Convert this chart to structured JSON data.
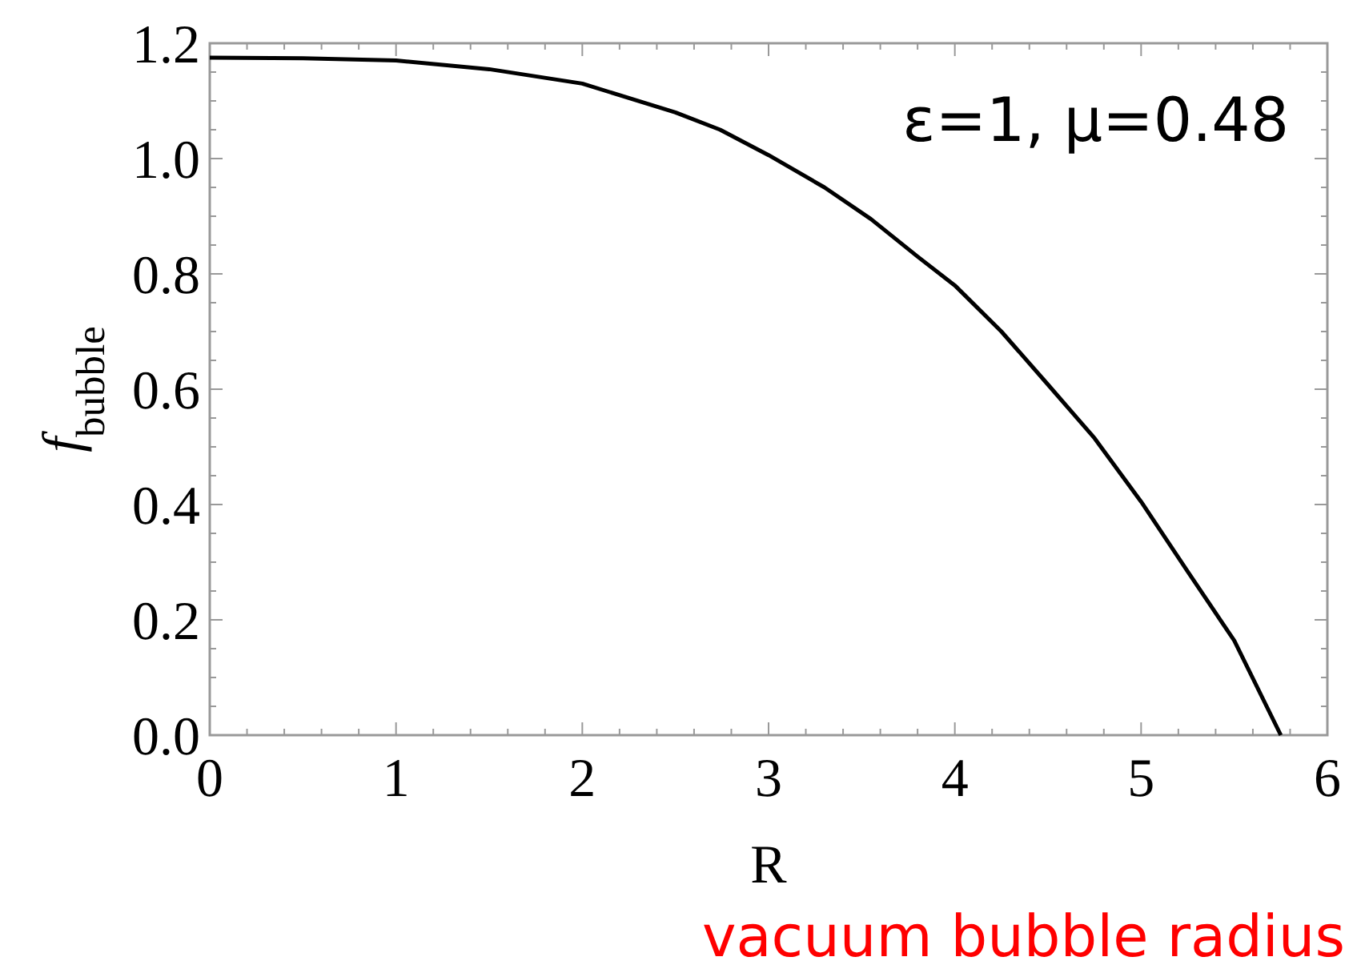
{
  "chart_data": {
    "type": "line",
    "xlabel": "R",
    "ylabel": "f$_{bubble}$",
    "x": [
      0,
      0.5,
      1,
      1.5,
      2,
      2.5,
      2.74,
      3,
      3.3,
      3.55,
      3.8,
      4,
      4.25,
      4.5,
      4.75,
      5,
      5.25,
      5.5,
      5.75
    ],
    "series": [
      {
        "color": "#000000",
        "values": [
          1.175,
          1.174,
          1.17,
          1.155,
          1.13,
          1.08,
          1.05,
          1.006,
          0.95,
          0.895,
          0.83,
          0.78,
          0.7,
          0.608,
          0.515,
          0.405,
          0.284,
          0.164,
          0
        ]
      }
    ],
    "xlim": [
      0,
      6
    ],
    "ylim": [
      0,
      1.2
    ],
    "xticks": [
      0,
      {
        "value": 0.2,
        "label": null
      },
      {
        "value": 0.4,
        "label": null
      },
      {
        "value": 0.6,
        "label": null
      },
      {
        "value": 0.8,
        "label": null
      },
      1,
      {
        "value": 1.2,
        "label": null
      },
      {
        "value": 1.4,
        "label": null
      },
      {
        "value": 1.6,
        "label": null
      },
      {
        "value": 1.8,
        "label": null
      },
      2,
      {
        "value": 2.2,
        "label": null
      },
      {
        "value": 2.4,
        "label": null
      },
      {
        "value": 2.6,
        "label": null
      },
      {
        "value": 2.8,
        "label": null
      },
      3,
      {
        "value": 3.2,
        "label": null
      },
      {
        "value": 3.4,
        "label": null
      },
      {
        "value": 3.6,
        "label": null
      },
      {
        "value": 3.8,
        "label": null
      },
      4,
      {
        "value": 4.2,
        "label": null
      },
      {
        "value": 4.4,
        "label": null
      },
      {
        "value": 4.6,
        "label": null
      },
      {
        "value": 4.8,
        "label": null
      },
      5,
      {
        "value": 5.2,
        "label": null
      },
      {
        "value": 5.4,
        "label": null
      },
      {
        "value": 5.6,
        "label": null
      },
      {
        "value": 5.8,
        "label": null
      },
      6
    ],
    "yticks": [
      {
        "value": 0,
        "label": "0.0"
      },
      {
        "value": 0.05,
        "label": null
      },
      {
        "value": 0.1,
        "label": null
      },
      {
        "value": 0.15,
        "label": null
      },
      0.2,
      {
        "value": 0.25,
        "label": null
      },
      {
        "value": 0.3,
        "label": null
      },
      {
        "value": 0.35,
        "label": null
      },
      0.4,
      {
        "value": 0.45,
        "label": null
      },
      {
        "value": 0.5,
        "label": null
      },
      {
        "value": 0.55,
        "label": null
      },
      0.6,
      {
        "value": 0.65,
        "label": null
      },
      {
        "value": 0.7,
        "label": null
      },
      {
        "value": 0.75,
        "label": null
      },
      0.8,
      {
        "value": 0.85,
        "label": null
      },
      {
        "value": 0.9,
        "label": null
      },
      {
        "value": 0.95,
        "label": null
      },
      {
        "value": 1,
        "label": "1.0"
      },
      {
        "value": 1.05,
        "label": null
      },
      {
        "value": 1.1,
        "label": null
      },
      {
        "value": 1.15,
        "label": null
      },
      1.2
    ],
    "grid": false,
    "marker": "none",
    "line_style": "solid",
    "annotations": [
      "ε=1, μ=0.48",
      "vacuum bubble radius"
    ]
  }
}
